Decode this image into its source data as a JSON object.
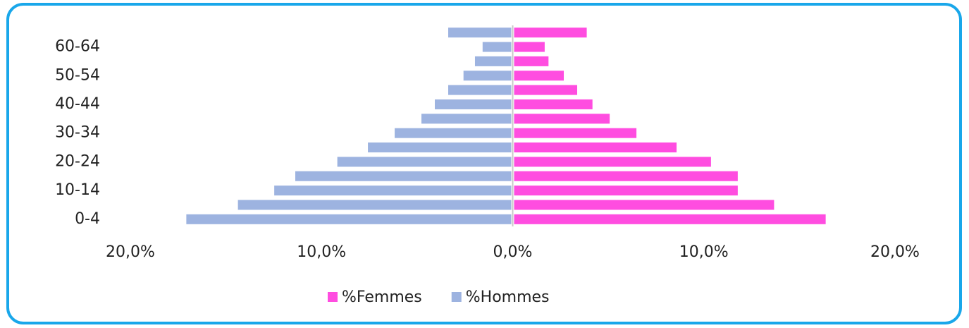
{
  "chart_data": {
    "type": "bar",
    "orientation": "horizontal",
    "categories": [
      "0-4",
      null,
      "10-14",
      null,
      "20-24",
      null,
      "30-34",
      null,
      "40-44",
      null,
      "50-54",
      null,
      "60-64",
      null
    ],
    "series": [
      {
        "name": "%Femmes",
        "color": "#ff4de0",
        "values": [
          16.3,
          13.6,
          11.7,
          11.7,
          10.3,
          8.5,
          6.4,
          5.0,
          4.1,
          3.3,
          2.6,
          1.8,
          1.6,
          3.8
        ]
      },
      {
        "name": "%Hommes",
        "color": "#9db3e0",
        "values": [
          -17.0,
          -14.3,
          -12.4,
          -11.3,
          -9.1,
          -7.5,
          -6.1,
          -4.7,
          -4.0,
          -3.3,
          -2.5,
          -1.9,
          -1.5,
          -3.3
        ]
      }
    ],
    "xlim": [
      -20,
      20
    ],
    "xticks": [
      {
        "value": -20,
        "label": "20,0%"
      },
      {
        "value": -10,
        "label": "10,0%"
      },
      {
        "value": 0,
        "label": "0,0%"
      },
      {
        "value": 10,
        "label": "10,0%"
      },
      {
        "value": 20,
        "label": "20,0%"
      }
    ],
    "legend": "bottom"
  }
}
